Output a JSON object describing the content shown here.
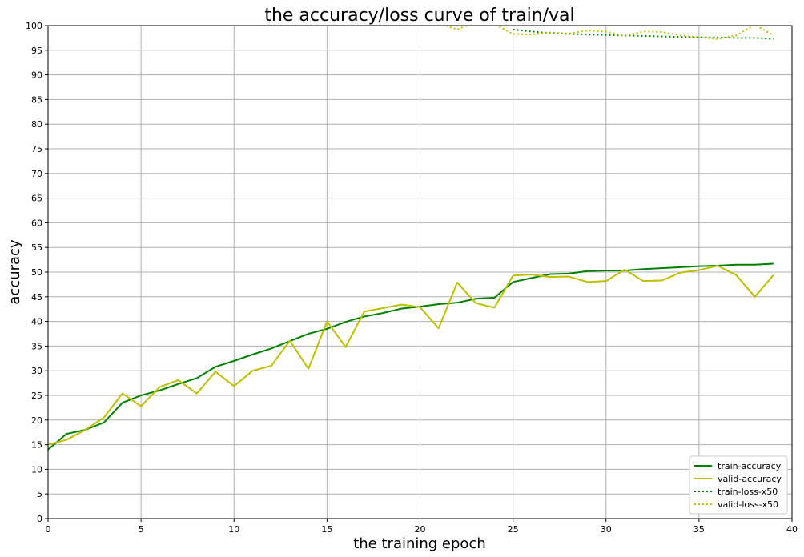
{
  "chart_data": {
    "type": "line",
    "title": "the accuracy/loss curve of train/val",
    "xlabel": "the training epoch",
    "ylabel": "accuracy",
    "xlim": [
      0,
      40
    ],
    "ylim": [
      0,
      100
    ],
    "xticks": [
      0,
      5,
      10,
      15,
      20,
      25,
      30,
      35,
      40
    ],
    "yticks": [
      0,
      5,
      10,
      15,
      20,
      25,
      30,
      35,
      40,
      45,
      50,
      55,
      60,
      65,
      70,
      75,
      80,
      85,
      90,
      95,
      100
    ],
    "grid": true,
    "legend_position": "lower-right",
    "x": [
      0,
      1,
      2,
      3,
      4,
      5,
      6,
      7,
      8,
      9,
      10,
      11,
      12,
      13,
      14,
      15,
      16,
      17,
      18,
      19,
      20,
      21,
      22,
      23,
      24,
      25,
      26,
      27,
      28,
      29,
      30,
      31,
      32,
      33,
      34,
      35,
      36,
      37,
      38,
      39
    ],
    "series": [
      {
        "name": "train-accuracy",
        "color": "#008000",
        "style": "solid",
        "values": [
          14.0,
          17.2,
          18.0,
          19.5,
          23.5,
          25.0,
          26.0,
          27.3,
          28.5,
          30.8,
          32.0,
          33.3,
          34.5,
          36.0,
          37.5,
          38.5,
          39.9,
          41.0,
          41.7,
          42.6,
          43.0,
          43.5,
          43.8,
          44.6,
          44.8,
          48.0,
          48.8,
          49.6,
          49.7,
          50.2,
          50.3,
          50.3,
          50.6,
          50.8,
          51.0,
          51.2,
          51.3,
          51.5,
          51.5,
          51.7
        ]
      },
      {
        "name": "valid-accuracy",
        "color": "#bfbf00",
        "style": "solid",
        "values": [
          15.0,
          16.0,
          18.0,
          20.5,
          25.4,
          22.8,
          26.7,
          28.1,
          25.4,
          29.8,
          26.9,
          30.0,
          31.0,
          36.1,
          30.4,
          40.0,
          34.8,
          42.0,
          42.7,
          43.4,
          42.9,
          38.6,
          47.9,
          43.7,
          42.8,
          49.3,
          49.5,
          49.0,
          49.1,
          48.0,
          48.2,
          50.5,
          48.2,
          48.3,
          49.9,
          50.4,
          51.3,
          49.4,
          45.0,
          49.4
        ]
      },
      {
        "name": "train-loss-x50",
        "color": "#008000",
        "style": "dotted",
        "values": [
          null,
          null,
          null,
          null,
          null,
          null,
          null,
          null,
          null,
          null,
          null,
          null,
          null,
          null,
          null,
          null,
          null,
          null,
          null,
          null,
          null,
          null,
          null,
          null,
          null,
          99.2,
          98.8,
          98.5,
          98.3,
          98.2,
          98.1,
          98.0,
          97.9,
          97.8,
          97.7,
          97.6,
          97.6,
          97.5,
          97.5,
          97.3
        ]
      },
      {
        "name": "valid-loss-x50",
        "color": "#bfbf00",
        "style": "dotted",
        "values": [
          null,
          null,
          null,
          null,
          null,
          null,
          null,
          null,
          null,
          null,
          null,
          null,
          null,
          null,
          null,
          null,
          null,
          null,
          null,
          null,
          null,
          100.5,
          99.2,
          100.8,
          100.3,
          98.3,
          98.2,
          98.6,
          98.4,
          99.0,
          98.8,
          97.9,
          98.8,
          98.7,
          98.0,
          97.6,
          97.3,
          98.0,
          100.2,
          98.0
        ]
      }
    ]
  }
}
